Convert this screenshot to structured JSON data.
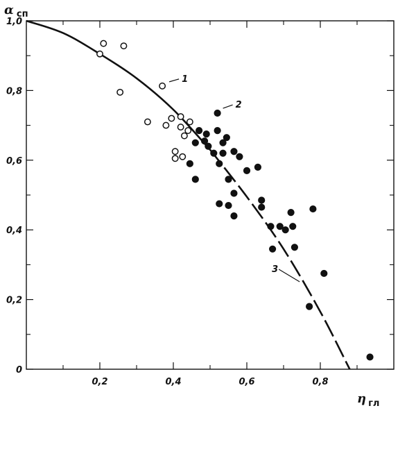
{
  "chart_data": {
    "type": "scatter",
    "title": "",
    "xlabel_main": "η",
    "xlabel_sub": "гл",
    "ylabel_main": "α",
    "ylabel_sub": "сп",
    "xlim": [
      0,
      1.0
    ],
    "ylim": [
      0,
      1.0
    ],
    "x_ticks": [
      0.2,
      0.4,
      0.6,
      0.8
    ],
    "x_tick_labels": [
      "0,2",
      "0,4",
      "0,6",
      "0,8"
    ],
    "x_minor_ticks": [
      0.1,
      0.3,
      0.5,
      0.7,
      0.9
    ],
    "y_ticks": [
      0,
      0.2,
      0.4,
      0.6,
      0.8,
      1.0
    ],
    "y_tick_labels": [
      "0",
      "0,2",
      "0,4",
      "0,6",
      "0,8",
      "1,0"
    ],
    "y_minor_ticks": [
      0.1,
      0.3,
      0.5,
      0.7,
      0.9
    ],
    "grid": false,
    "series": [
      {
        "marker": "open-circle",
        "label": "1",
        "points": [
          [
            0.2,
            0.905
          ],
          [
            0.21,
            0.935
          ],
          [
            0.265,
            0.928
          ],
          [
            0.255,
            0.795
          ],
          [
            0.37,
            0.813
          ],
          [
            0.33,
            0.71
          ],
          [
            0.38,
            0.7
          ],
          [
            0.395,
            0.72
          ],
          [
            0.42,
            0.725
          ],
          [
            0.42,
            0.695
          ],
          [
            0.445,
            0.71
          ],
          [
            0.44,
            0.685
          ],
          [
            0.43,
            0.67
          ],
          [
            0.405,
            0.625
          ],
          [
            0.405,
            0.605
          ],
          [
            0.425,
            0.61
          ]
        ]
      },
      {
        "marker": "filled-circle",
        "label": "2",
        "points": [
          [
            0.52,
            0.735
          ],
          [
            0.47,
            0.685
          ],
          [
            0.49,
            0.675
          ],
          [
            0.52,
            0.685
          ],
          [
            0.545,
            0.665
          ],
          [
            0.46,
            0.65
          ],
          [
            0.485,
            0.655
          ],
          [
            0.495,
            0.64
          ],
          [
            0.535,
            0.65
          ],
          [
            0.51,
            0.62
          ],
          [
            0.535,
            0.62
          ],
          [
            0.565,
            0.625
          ],
          [
            0.58,
            0.61
          ],
          [
            0.445,
            0.59
          ],
          [
            0.525,
            0.59
          ],
          [
            0.6,
            0.57
          ],
          [
            0.63,
            0.58
          ],
          [
            0.46,
            0.545
          ],
          [
            0.55,
            0.545
          ],
          [
            0.565,
            0.505
          ],
          [
            0.55,
            0.47
          ],
          [
            0.525,
            0.475
          ],
          [
            0.565,
            0.44
          ],
          [
            0.64,
            0.485
          ],
          [
            0.64,
            0.465
          ],
          [
            0.665,
            0.41
          ],
          [
            0.69,
            0.41
          ],
          [
            0.705,
            0.4
          ],
          [
            0.72,
            0.45
          ],
          [
            0.725,
            0.41
          ],
          [
            0.73,
            0.35
          ],
          [
            0.67,
            0.345
          ],
          [
            0.78,
            0.46
          ],
          [
            0.81,
            0.275
          ],
          [
            0.77,
            0.18
          ],
          [
            0.935,
            0.035
          ]
        ]
      },
      {
        "type": "line",
        "label": "3",
        "points": [
          [
            0.0,
            1.0
          ],
          [
            0.1,
            0.965
          ],
          [
            0.2,
            0.905
          ],
          [
            0.3,
            0.835
          ],
          [
            0.4,
            0.745
          ],
          [
            0.5,
            0.63
          ],
          [
            0.6,
            0.495
          ],
          [
            0.7,
            0.345
          ],
          [
            0.8,
            0.165
          ],
          [
            0.88,
            0.0
          ]
        ]
      }
    ],
    "annotations": [
      {
        "text": "1",
        "target": [
          0.37,
          0.813
        ]
      },
      {
        "text": "2",
        "target": [
          0.52,
          0.735
        ]
      },
      {
        "text": "3",
        "target": [
          0.755,
          0.235
        ]
      }
    ]
  }
}
